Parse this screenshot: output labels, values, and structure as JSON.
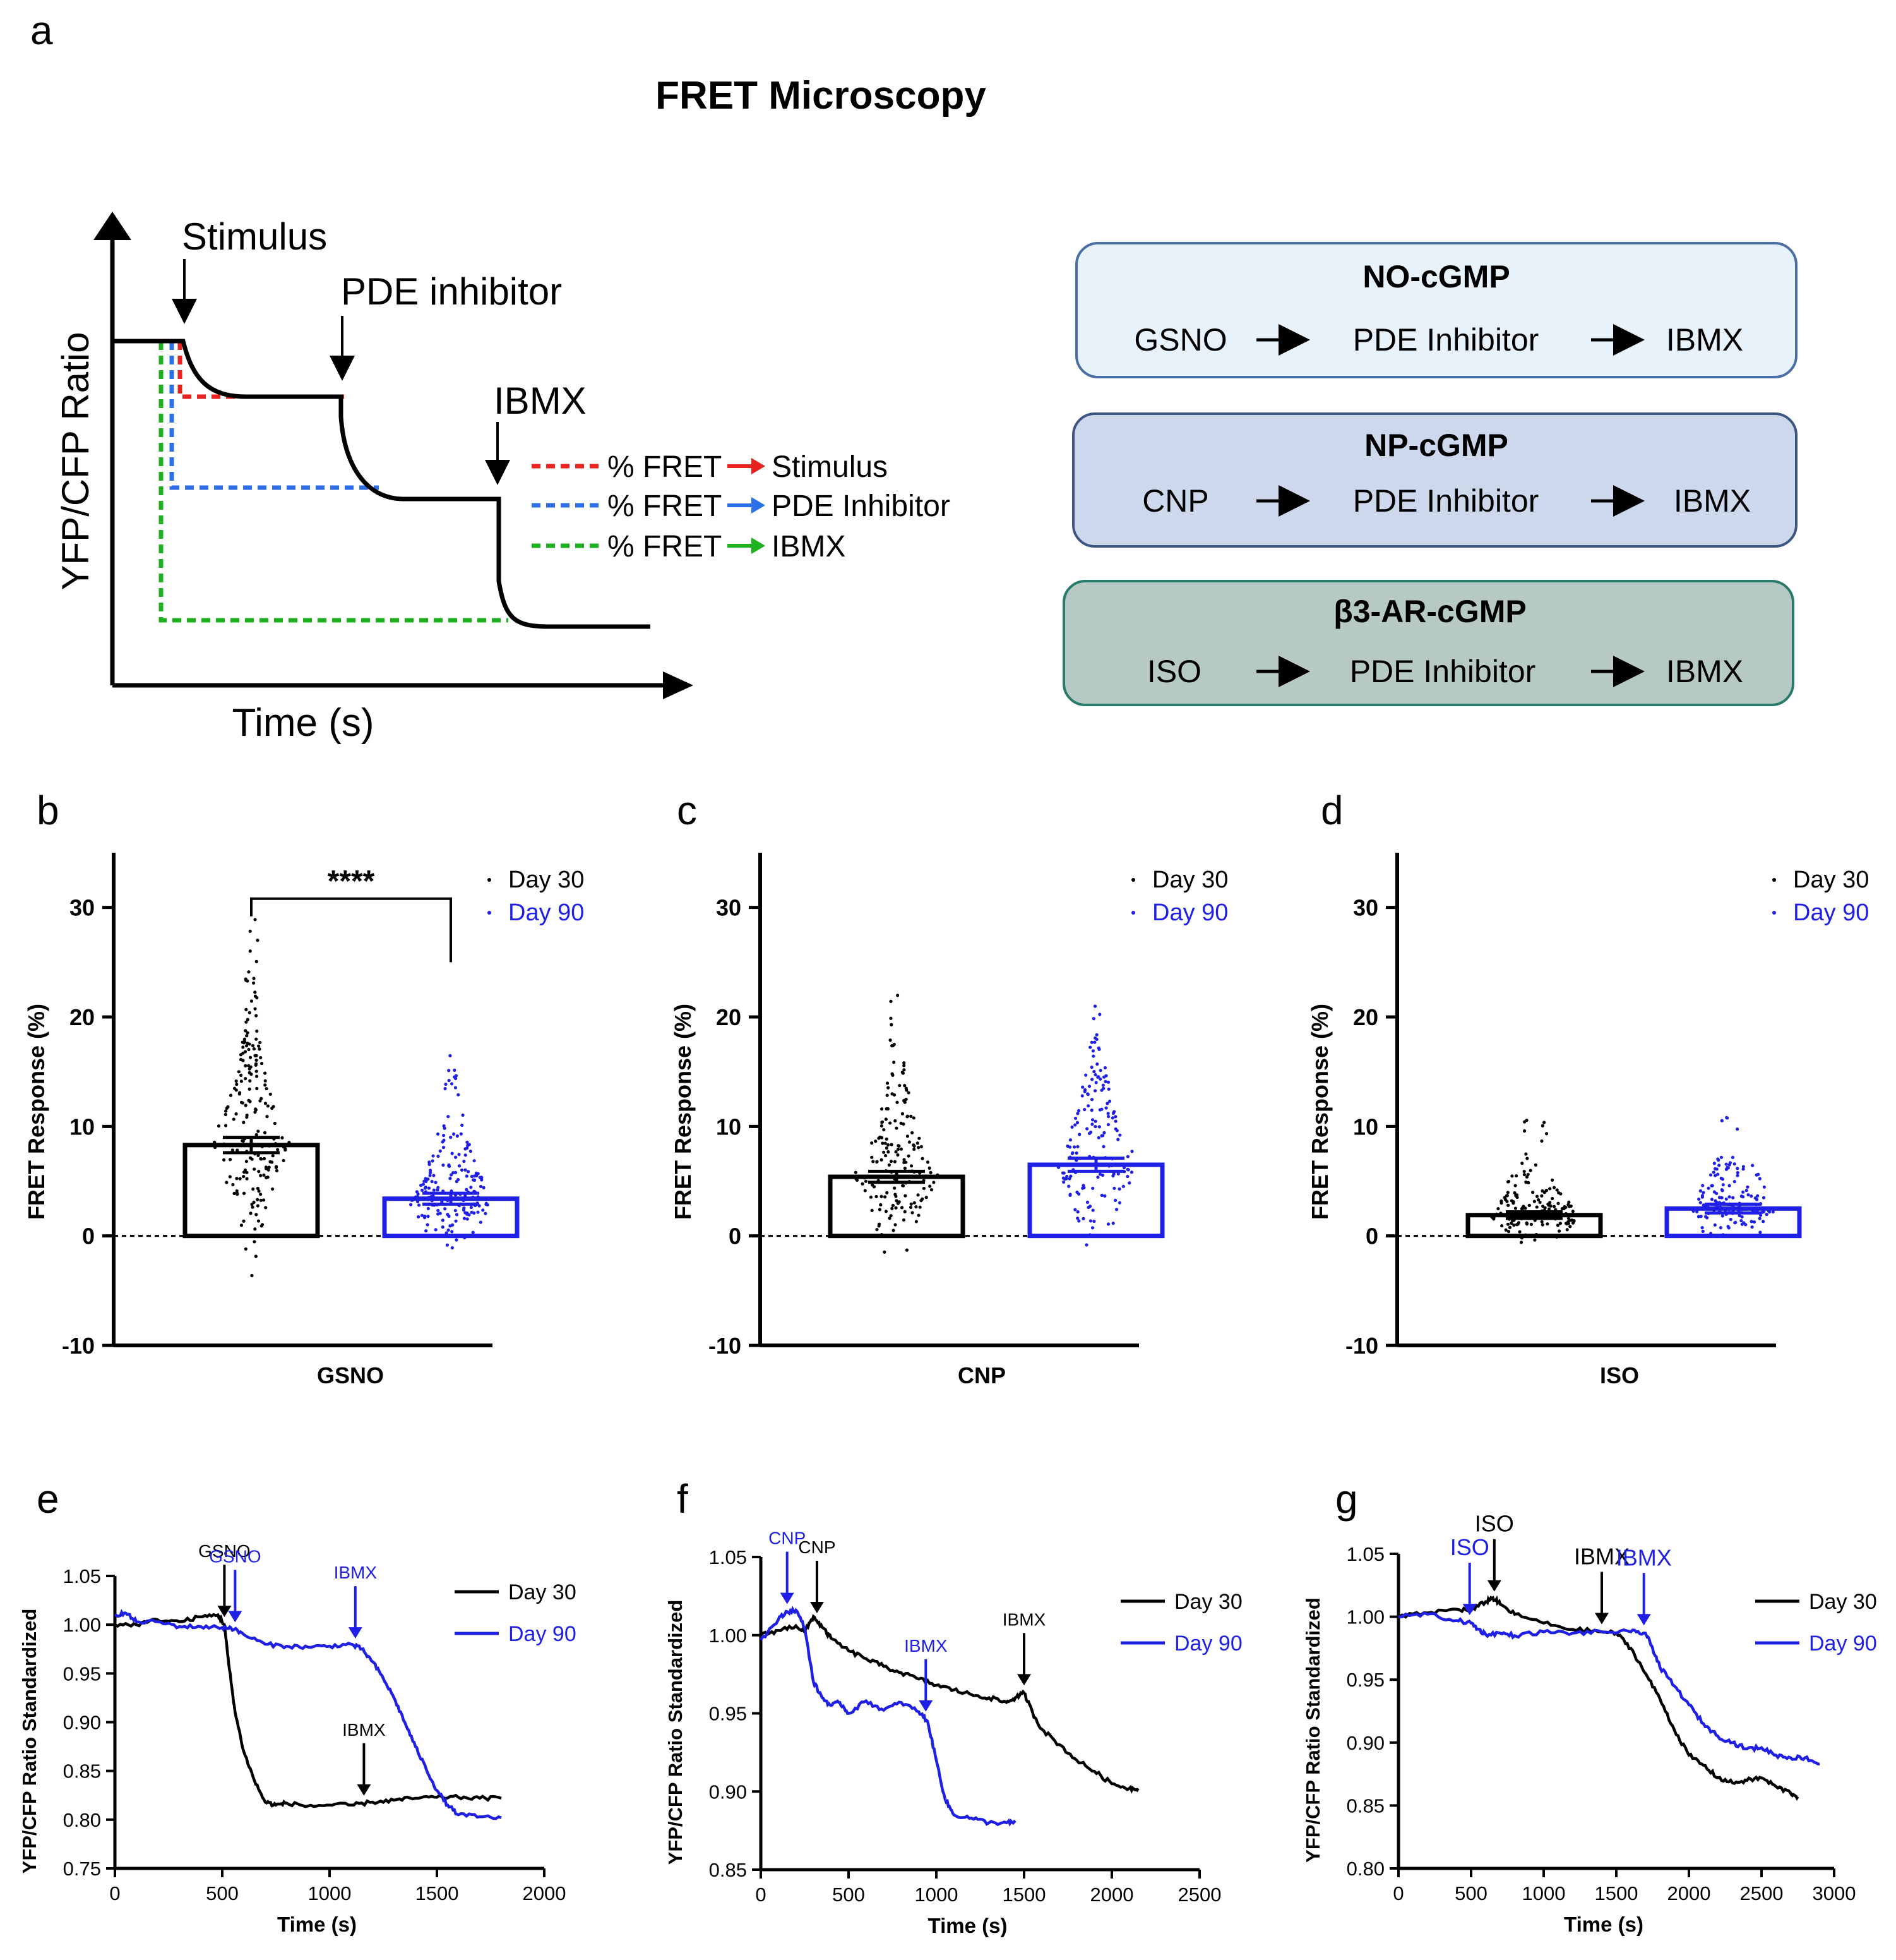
{
  "colors": {
    "day30": "#000000",
    "day90": "#1f1fe6",
    "red": "#e8231f",
    "blue": "#2e6fe8",
    "green": "#1fb01f",
    "box1_fill": "#e8f2fb",
    "box1_border": "#4a6fa5",
    "box2_fill": "#cdd8ec",
    "box2_border": "#3d5680",
    "box3_fill": "#b7c9c5",
    "box3_border": "#2a7a6a"
  },
  "panel_a": {
    "letter": "a",
    "title": "FRET Microscopy",
    "ylabel": "YFP/CFP Ratio",
    "xlabel": "Time (s)",
    "labels": {
      "stimulus": "Stimulus",
      "pde": "PDE inhibitor",
      "ibmx": "IBMX"
    },
    "legend": [
      {
        "prefix": "% FRET",
        "target": "Stimulus",
        "color": "#e8231f"
      },
      {
        "prefix": "% FRET",
        "target": "PDE Inhibitor",
        "color": "#2e6fe8"
      },
      {
        "prefix": "% FRET",
        "target": "IBMX",
        "color": "#1fb01f"
      }
    ],
    "protocols": [
      {
        "title": "NO-cGMP",
        "steps": [
          "GSNO",
          "PDE Inhibitor",
          "IBMX"
        ]
      },
      {
        "title": "NP-cGMP",
        "steps": [
          "CNP",
          "PDE Inhibitor",
          "IBMX"
        ]
      },
      {
        "title": "β3-AR-cGMP",
        "steps": [
          "ISO",
          "PDE Inhibitor",
          "IBMX"
        ]
      }
    ],
    "arrow_glyph": "⟶"
  },
  "chart_data": [
    {
      "id": "b",
      "letter": "b",
      "type": "bar",
      "categories": [
        "GSNO"
      ],
      "series": [
        {
          "name": "Day 30",
          "mean": 8.3,
          "sem": 0.7,
          "n": 200
        },
        {
          "name": "Day 90",
          "mean": 3.4,
          "sem": 0.5,
          "n": 190
        }
      ],
      "ylabel": "FRET Response (%)",
      "ylim": [
        -10,
        35
      ],
      "yticks": [
        -10,
        0,
        10,
        20,
        30
      ],
      "significance": "****",
      "legend": [
        "Day 30",
        "Day 90"
      ]
    },
    {
      "id": "c",
      "letter": "c",
      "type": "bar",
      "categories": [
        "CNP"
      ],
      "series": [
        {
          "name": "Day 30",
          "mean": 5.4,
          "sem": 0.5,
          "n": 170
        },
        {
          "name": "Day 90",
          "mean": 6.5,
          "sem": 0.6,
          "n": 160
        }
      ],
      "ylabel": "FRET Response (%)",
      "ylim": [
        -10,
        35
      ],
      "yticks": [
        -10,
        0,
        10,
        20,
        30
      ],
      "legend": [
        "Day 30",
        "Day 90"
      ]
    },
    {
      "id": "d",
      "letter": "d",
      "type": "bar",
      "categories": [
        "ISO"
      ],
      "series": [
        {
          "name": "Day 30",
          "mean": 1.9,
          "sem": 0.3,
          "n": 160
        },
        {
          "name": "Day 90",
          "mean": 2.5,
          "sem": 0.4,
          "n": 150
        }
      ],
      "ylabel": "FRET Response (%)",
      "ylim": [
        -10,
        35
      ],
      "yticks": [
        -10,
        0,
        10,
        20,
        30
      ],
      "legend": [
        "Day 30",
        "Day 90"
      ]
    },
    {
      "id": "e",
      "letter": "e",
      "type": "line",
      "xlabel": "Time (s)",
      "ylabel": "YFP/CFP Ratio Standardized",
      "xlim": [
        0,
        2000
      ],
      "ylim": [
        0.75,
        1.05
      ],
      "xticks": [
        0,
        500,
        1000,
        1500,
        2000
      ],
      "yticks": [
        0.75,
        0.8,
        0.85,
        0.9,
        0.95,
        1.0,
        1.05
      ],
      "series": [
        {
          "name": "Day 30",
          "x": [
            0,
            100,
            200,
            300,
            400,
            480,
            510,
            530,
            560,
            600,
            650,
            700,
            750,
            800,
            900,
            1000,
            1100,
            1200,
            1300,
            1400,
            1500,
            1600,
            1700,
            1800
          ],
          "y": [
            1.0,
            1.0,
            1.005,
            1.003,
            1.008,
            1.01,
            1.0,
            0.96,
            0.91,
            0.87,
            0.84,
            0.818,
            0.815,
            0.817,
            0.814,
            0.815,
            0.815,
            0.818,
            0.82,
            0.822,
            0.823,
            0.823,
            0.822,
            0.822
          ]
        },
        {
          "name": "Day 90",
          "x": [
            0,
            50,
            100,
            200,
            300,
            400,
            500,
            540,
            600,
            700,
            800,
            900,
            1000,
            1100,
            1150,
            1200,
            1250,
            1300,
            1350,
            1400,
            1450,
            1500,
            1550,
            1600,
            1700,
            1800
          ],
          "y": [
            1.01,
            1.012,
            1.003,
            1.003,
            0.998,
            0.998,
            0.997,
            0.997,
            0.99,
            0.98,
            0.978,
            0.977,
            0.978,
            0.98,
            0.975,
            0.962,
            0.945,
            0.925,
            0.9,
            0.875,
            0.852,
            0.83,
            0.815,
            0.805,
            0.803,
            0.802
          ]
        }
      ],
      "annotations": [
        {
          "text": "GSNO",
          "x": 510,
          "series": 0,
          "above": true
        },
        {
          "text": "GSNO",
          "x": 560,
          "series": 1,
          "above": true
        },
        {
          "text": "IBMX",
          "x": 1120,
          "series": 1,
          "above": true
        },
        {
          "text": "IBMX",
          "x": 1160,
          "series": 0,
          "above": false
        }
      ],
      "legend": [
        "Day 30",
        "Day 90"
      ]
    },
    {
      "id": "f",
      "letter": "f",
      "type": "line",
      "xlabel": "Time (s)",
      "ylabel": "YFP/CFP Ratio Standardized",
      "xlim": [
        0,
        2500
      ],
      "ylim": [
        0.85,
        1.05
      ],
      "xticks": [
        0,
        500,
        1000,
        1500,
        2000,
        2500
      ],
      "yticks": [
        0.85,
        0.9,
        0.95,
        1.0,
        1.05
      ],
      "series": [
        {
          "name": "Day 30",
          "x": [
            0,
            100,
            200,
            250,
            300,
            350,
            400,
            500,
            600,
            700,
            800,
            900,
            1000,
            1100,
            1200,
            1300,
            1400,
            1450,
            1500,
            1550,
            1600,
            1700,
            1800,
            1900,
            2000,
            2100,
            2150
          ],
          "y": [
            1.0,
            1.003,
            1.006,
            1.002,
            1.012,
            1.005,
            0.998,
            0.99,
            0.985,
            0.98,
            0.976,
            0.972,
            0.968,
            0.965,
            0.962,
            0.96,
            0.957,
            0.96,
            0.963,
            0.95,
            0.94,
            0.93,
            0.92,
            0.913,
            0.905,
            0.902,
            0.902
          ]
        },
        {
          "name": "Day 90",
          "x": [
            0,
            100,
            150,
            200,
            250,
            300,
            350,
            400,
            450,
            500,
            600,
            700,
            800,
            900,
            950,
            1000,
            1050,
            1100,
            1200,
            1300,
            1400,
            1450
          ],
          "y": [
            0.997,
            1.01,
            1.015,
            1.016,
            1.005,
            0.97,
            0.96,
            0.955,
            0.957,
            0.95,
            0.958,
            0.952,
            0.957,
            0.951,
            0.945,
            0.92,
            0.895,
            0.885,
            0.883,
            0.88,
            0.88,
            0.88
          ]
        }
      ],
      "annotations": [
        {
          "text": "CNP",
          "x": 150,
          "series": 1,
          "above": true
        },
        {
          "text": "CNP",
          "x": 320,
          "series": 0,
          "above": true
        },
        {
          "text": "IBMX",
          "x": 940,
          "series": 1,
          "above": true
        },
        {
          "text": "IBMX",
          "x": 1500,
          "series": 0,
          "above": true
        }
      ],
      "legend": [
        "Day 30",
        "Day 90"
      ]
    },
    {
      "id": "g",
      "letter": "g",
      "type": "line",
      "xlabel": "Time (s)",
      "ylabel": "YFP/CFP Ratio Standardized",
      "xlim": [
        0,
        3000
      ],
      "ylim": [
        0.8,
        1.05
      ],
      "xticks": [
        0,
        500,
        1000,
        1500,
        2000,
        2500,
        3000
      ],
      "yticks": [
        0.8,
        0.85,
        0.9,
        0.95,
        1.0,
        1.05
      ],
      "series": [
        {
          "name": "Day 30",
          "x": [
            0,
            200,
            400,
            500,
            600,
            650,
            700,
            800,
            1000,
            1200,
            1400,
            1500,
            1600,
            1700,
            1800,
            1900,
            2000,
            2100,
            2200,
            2300,
            2400,
            2500,
            2600,
            2700,
            2750
          ],
          "y": [
            1.0,
            1.003,
            1.006,
            1.005,
            1.012,
            1.015,
            1.01,
            1.002,
            0.995,
            0.99,
            0.988,
            0.987,
            0.975,
            0.955,
            0.935,
            0.91,
            0.89,
            0.882,
            0.872,
            0.868,
            0.87,
            0.872,
            0.865,
            0.86,
            0.857
          ]
        },
        {
          "name": "Day 90",
          "x": [
            0,
            200,
            400,
            500,
            550,
            600,
            700,
            800,
            1000,
            1200,
            1400,
            1600,
            1700,
            1750,
            1800,
            1900,
            2000,
            2100,
            2200,
            2300,
            2400,
            2500,
            2600,
            2700,
            2800,
            2900
          ],
          "y": [
            1.0,
            1.002,
            0.997,
            0.995,
            0.99,
            0.986,
            0.987,
            0.985,
            0.988,
            0.987,
            0.988,
            0.988,
            0.987,
            0.975,
            0.96,
            0.945,
            0.93,
            0.915,
            0.905,
            0.9,
            0.895,
            0.896,
            0.89,
            0.888,
            0.888,
            0.883
          ]
        }
      ],
      "annotations": [
        {
          "text": "ISO",
          "x": 490,
          "series": 1,
          "above": true
        },
        {
          "text": "ISO",
          "x": 660,
          "series": 0,
          "above": true
        },
        {
          "text": "IBMX",
          "x": 1400,
          "series": 0,
          "above": true
        },
        {
          "text": "IBMX",
          "x": 1690,
          "series": 1,
          "above": true
        }
      ],
      "legend": [
        "Day 30",
        "Day 90"
      ]
    }
  ]
}
